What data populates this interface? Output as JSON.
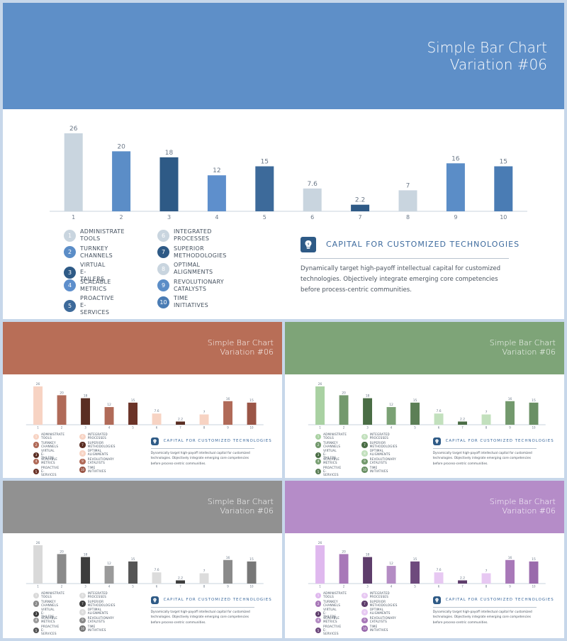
{
  "title_line1": "Simple Bar Chart",
  "title_line2": "Variation #06",
  "caption": {
    "title": "CAPITAL FOR CUSTOMIZED TECHNOLOGIES",
    "text": "Dynamically target high-payoff intellectual capital for customized technologies. Objectively integrate emerging core competencies before process-centric communities."
  },
  "legend": [
    {
      "num": "1",
      "label": "ADMINISTRATE TOOLS"
    },
    {
      "num": "2",
      "label": "TURNKEY CHANNELS"
    },
    {
      "num": "3",
      "label": "VIRTUAL E-TAILERS"
    },
    {
      "num": "4",
      "label": "SCALABLE METRICS"
    },
    {
      "num": "5",
      "label": "PROACTIVE E-SERVICES"
    },
    {
      "num": "6",
      "label": "INTEGRATED PROCESSES"
    },
    {
      "num": "7",
      "label": "SUPERIOR METHODOLOGIES"
    },
    {
      "num": "8",
      "label": "OPTIMAL ALIGNMENTS"
    },
    {
      "num": "9",
      "label": "REVOLUTIONARY CATALYSTS"
    },
    {
      "num": "10",
      "label": "TIME INITIATIVES"
    }
  ],
  "chart_data": {
    "type": "bar",
    "categories": [
      "1",
      "2",
      "3",
      "4",
      "5",
      "6",
      "7",
      "8",
      "9",
      "10"
    ],
    "values": [
      26,
      20,
      18,
      12,
      15,
      7.6,
      2.2,
      7,
      16,
      15
    ],
    "value_labels": [
      "26",
      "20",
      "18",
      "12",
      "15",
      "7.6",
      "2.2",
      "7",
      "16",
      "15"
    ],
    "ylim": [
      0,
      26
    ],
    "grid": false
  },
  "themes": [
    {
      "name": "blue",
      "header": "#5e8fc8",
      "colors": [
        "#c9d5df",
        "#5b8dc7",
        "#2e5a86",
        "#5e8fcc",
        "#3d6a9a",
        "#c9d5df",
        "#2e5a86",
        "#c9d5df",
        "#5b8dc7",
        "#4a7cb4"
      ],
      "circle_colors": [
        "#c9d5df",
        "#5b8dc7",
        "#2e5a86",
        "#5e8fcc",
        "#3d6a9a",
        "#c9d5df",
        "#2e5a86",
        "#c9d5df",
        "#5b8dc7",
        "#4a7cb4"
      ]
    },
    {
      "name": "brown",
      "header": "#b86e57",
      "colors": [
        "#f7d3c3",
        "#b06a58",
        "#5a2e23",
        "#b06a58",
        "#6b3328",
        "#f7d3c3",
        "#5a2e23",
        "#f7d3c3",
        "#b06a58",
        "#9a5546"
      ],
      "circle_colors": [
        "#f7d3c3",
        "#b06a58",
        "#5a2e23",
        "#b06a58",
        "#6b3328",
        "#f7d3c3",
        "#5a2e23",
        "#f7d3c3",
        "#b06a58",
        "#9a5546"
      ]
    },
    {
      "name": "green",
      "header": "#7ea478",
      "colors": [
        "#a9d1a2",
        "#73996d",
        "#4a6d45",
        "#7aa174",
        "#5c7f56",
        "#c2e0bd",
        "#4a6d45",
        "#c2e0bd",
        "#73996d",
        "#6a9064"
      ],
      "circle_colors": [
        "#a9d1a2",
        "#73996d",
        "#4a6d45",
        "#7aa174",
        "#5c7f56",
        "#c2e0bd",
        "#4a6d45",
        "#c2e0bd",
        "#73996d",
        "#6a9064"
      ]
    },
    {
      "name": "gray",
      "header": "#919191",
      "colors": [
        "#d9d9d9",
        "#8a8a8a",
        "#3d3d3d",
        "#9a9a9a",
        "#555555",
        "#dcdcdc",
        "#3d3d3d",
        "#dcdcdc",
        "#8a8a8a",
        "#777777"
      ],
      "circle_colors": [
        "#d9d9d9",
        "#8a8a8a",
        "#3d3d3d",
        "#9a9a9a",
        "#555555",
        "#dcdcdc",
        "#3d3d3d",
        "#dcdcdc",
        "#8a8a8a",
        "#777777"
      ]
    },
    {
      "name": "purple",
      "header": "#b58cc8",
      "colors": [
        "#dfb8ee",
        "#a878b8",
        "#5e3d6b",
        "#b48cc4",
        "#6e4a7d",
        "#e7c8f2",
        "#5e3d6b",
        "#e7c8f2",
        "#a878b8",
        "#9a6aac"
      ],
      "circle_colors": [
        "#dfb8ee",
        "#a878b8",
        "#5e3d6b",
        "#b48cc4",
        "#6e4a7d",
        "#e7c8f2",
        "#5e3d6b",
        "#e7c8f2",
        "#a878b8",
        "#9a6aac"
      ]
    }
  ]
}
